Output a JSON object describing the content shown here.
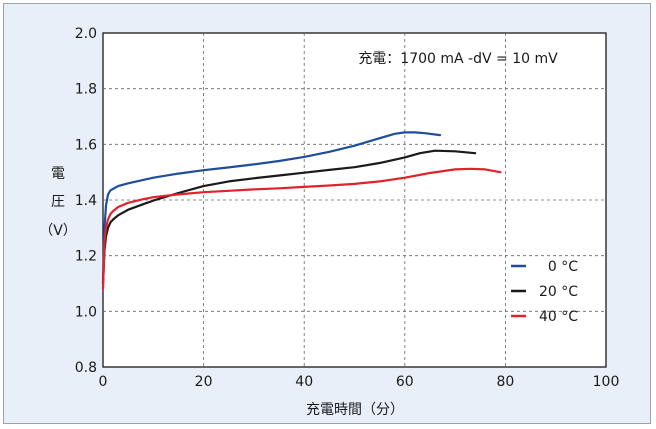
{
  "chart_data": {
    "type": "line",
    "annotation": "充電：1700 mA -dV = 10 mV",
    "xlabel": "充電時間（分）",
    "ylabel": [
      "電",
      "圧",
      "（V）"
    ],
    "xlim": [
      0,
      100
    ],
    "ylim": [
      0.8,
      2.0
    ],
    "xticks": [
      "0",
      "20",
      "40",
      "60",
      "80",
      "100"
    ],
    "yticks": [
      "0.8",
      "1.0",
      "1.2",
      "1.4",
      "1.6",
      "1.8",
      "2.0"
    ],
    "grid": true,
    "legend_position": "bottom-right",
    "series": [
      {
        "name": "0 °C",
        "color": "#1f4e9c",
        "x": [
          0,
          0.3,
          0.6,
          1,
          1.5,
          2,
          3,
          5,
          10,
          15,
          20,
          25,
          30,
          35,
          40,
          45,
          50,
          55,
          58,
          60,
          62,
          64,
          67
        ],
        "y": [
          1.1,
          1.3,
          1.38,
          1.42,
          1.435,
          1.44,
          1.45,
          1.46,
          1.48,
          1.495,
          1.507,
          1.517,
          1.528,
          1.54,
          1.555,
          1.573,
          1.595,
          1.622,
          1.638,
          1.643,
          1.643,
          1.64,
          1.633
        ]
      },
      {
        "name": "20 °C",
        "color": "#1a1a1a",
        "x": [
          0,
          0.3,
          0.6,
          1,
          1.5,
          2,
          3,
          5,
          8,
          10,
          15,
          20,
          25,
          30,
          35,
          40,
          45,
          50,
          55,
          60,
          63,
          66,
          70,
          74
        ],
        "y": [
          1.1,
          1.22,
          1.27,
          1.3,
          1.32,
          1.33,
          1.345,
          1.365,
          1.385,
          1.398,
          1.425,
          1.45,
          1.467,
          1.478,
          1.488,
          1.498,
          1.508,
          1.518,
          1.533,
          1.553,
          1.568,
          1.577,
          1.575,
          1.568
        ]
      },
      {
        "name": "40 °C",
        "color": "#e2222b",
        "x": [
          0,
          0.3,
          0.6,
          1,
          1.5,
          2,
          3,
          5,
          8,
          10,
          15,
          20,
          25,
          30,
          35,
          40,
          45,
          50,
          55,
          60,
          65,
          70,
          73,
          76,
          79
        ],
        "y": [
          1.08,
          1.25,
          1.3,
          1.33,
          1.35,
          1.36,
          1.375,
          1.39,
          1.403,
          1.41,
          1.42,
          1.428,
          1.433,
          1.438,
          1.442,
          1.447,
          1.452,
          1.458,
          1.467,
          1.48,
          1.497,
          1.51,
          1.512,
          1.51,
          1.5
        ]
      }
    ]
  }
}
